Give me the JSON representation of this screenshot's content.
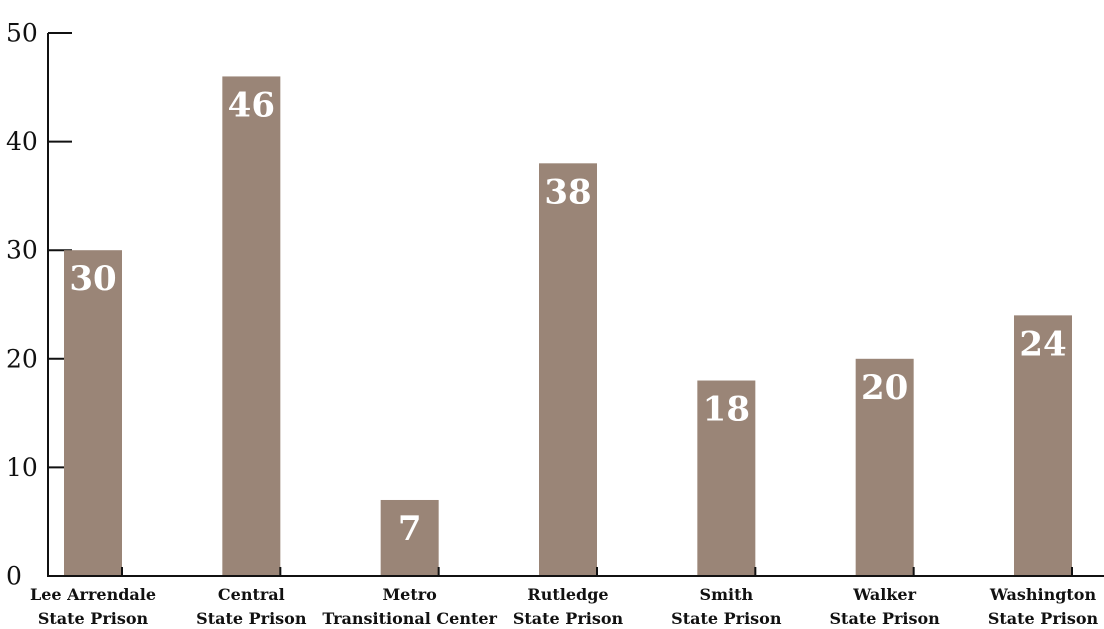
{
  "chart_data": {
    "type": "bar",
    "categories": [
      [
        "Lee Arrendale",
        "State Prison"
      ],
      [
        "Central",
        "State Prison"
      ],
      [
        "Metro",
        "Transitional Center"
      ],
      [
        "Rutledge",
        "State Prison"
      ],
      [
        "Smith",
        "State Prison"
      ],
      [
        "Walker",
        "State Prison"
      ],
      [
        "Washington",
        "State Prison"
      ]
    ],
    "values": [
      30,
      46,
      7,
      38,
      18,
      20,
      24
    ],
    "data_labels": [
      "30",
      "46",
      "7",
      "38",
      "18",
      "20",
      "24"
    ],
    "yticks": [
      "0",
      "10",
      "20",
      "30",
      "40",
      "50"
    ],
    "ylim": [
      0,
      50
    ],
    "title": "",
    "xlabel": "",
    "ylabel": "",
    "grid": false,
    "legend": "none",
    "bar_color": "#9a8577",
    "axis_color": "#111111",
    "label_color": "#ffffff"
  }
}
